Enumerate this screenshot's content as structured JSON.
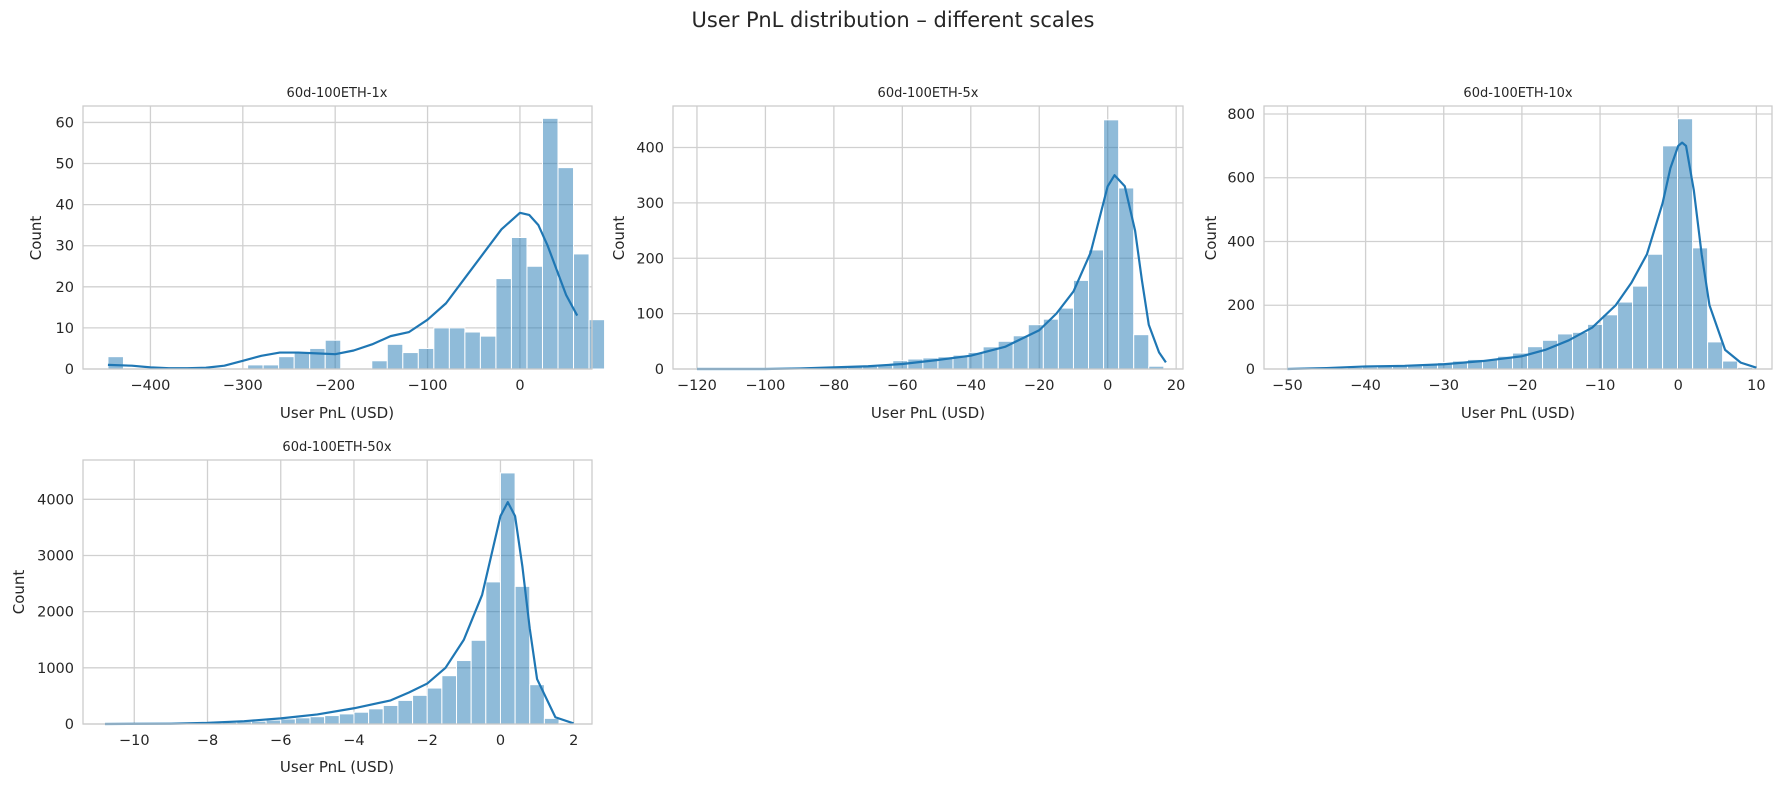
{
  "figure": {
    "title": "User PnL distribution – different scales"
  },
  "chart_data": [
    {
      "type": "bar",
      "subtype": "histogram-with-kde",
      "title": "60d-100ETH-1x",
      "xlabel": "User PnL (USD)",
      "ylabel": "Count",
      "xlim": [
        -473,
        78
      ],
      "ylim": [
        0,
        64
      ],
      "xticks": [
        -400,
        -300,
        -200,
        -100,
        0
      ],
      "yticks": [
        0,
        10,
        20,
        30,
        40,
        50,
        60
      ],
      "grid": true,
      "bin_start": -446,
      "bin_width": 16.8,
      "counts": [
        3,
        0,
        0,
        0,
        0,
        0,
        0,
        0,
        0,
        1,
        1,
        3,
        4,
        5,
        7,
        0,
        0,
        2,
        6,
        4,
        5,
        10,
        10,
        9,
        8,
        22,
        32,
        25,
        61,
        49,
        28,
        12
      ],
      "kde": {
        "x": [
          -446,
          -420,
          -400,
          -380,
          -360,
          -340,
          -320,
          -300,
          -280,
          -260,
          -240,
          -220,
          -200,
          -180,
          -160,
          -140,
          -120,
          -100,
          -80,
          -60,
          -40,
          -20,
          0,
          10,
          20,
          30,
          40,
          50,
          62
        ],
        "y": [
          1,
          0.8,
          0.4,
          0.2,
          0.2,
          0.3,
          0.8,
          2,
          3.2,
          4,
          4,
          3.8,
          3.6,
          4.5,
          6,
          8,
          9,
          12,
          16,
          22,
          28,
          34,
          38,
          37.5,
          35,
          30,
          24,
          18,
          13
        ]
      }
    },
    {
      "type": "bar",
      "subtype": "histogram-with-kde",
      "title": "60d-100ETH-5x",
      "xlabel": "User PnL (USD)",
      "ylabel": "Count",
      "xlim": [
        -127,
        22
      ],
      "ylim": [
        0,
        475
      ],
      "xticks": [
        -120,
        -100,
        -80,
        -60,
        -40,
        -20,
        0,
        20
      ],
      "yticks": [
        0,
        100,
        200,
        300,
        400
      ],
      "grid": true,
      "bin_start": -120,
      "bin_width": 4.4,
      "counts": [
        1,
        1,
        1,
        1,
        1,
        1,
        2,
        2,
        3,
        3,
        4,
        5,
        8,
        15,
        18,
        20,
        22,
        25,
        30,
        40,
        50,
        60,
        80,
        90,
        110,
        160,
        215,
        450,
        327,
        62,
        5
      ],
      "kde": {
        "x": [
          -120,
          -110,
          -100,
          -90,
          -80,
          -70,
          -60,
          -50,
          -40,
          -30,
          -20,
          -15,
          -10,
          -5,
          0,
          2,
          5,
          8,
          10,
          12,
          15,
          17
        ],
        "y": [
          0,
          0,
          0,
          1,
          3,
          5,
          9,
          16,
          24,
          40,
          70,
          100,
          140,
          210,
          330,
          350,
          330,
          250,
          160,
          80,
          30,
          12
        ]
      }
    },
    {
      "type": "bar",
      "subtype": "histogram-with-kde",
      "title": "60d-100ETH-10x",
      "xlabel": "User PnL (USD)",
      "ylabel": "Count",
      "xlim": [
        -53,
        12
      ],
      "ylim": [
        0,
        825
      ],
      "xticks": [
        -50,
        -40,
        -30,
        -20,
        -10,
        0,
        10
      ],
      "yticks": [
        0,
        200,
        400,
        600,
        800
      ],
      "grid": true,
      "bin_start": -50,
      "bin_width": 1.92,
      "counts": [
        2,
        2,
        3,
        3,
        5,
        6,
        8,
        10,
        12,
        15,
        20,
        25,
        30,
        30,
        40,
        50,
        70,
        90,
        110,
        115,
        140,
        170,
        210,
        260,
        360,
        700,
        785,
        380,
        85,
        25,
        5
      ],
      "kde": {
        "x": [
          -50,
          -45,
          -40,
          -35,
          -30,
          -25,
          -20,
          -17,
          -14,
          -11,
          -8,
          -6,
          -4,
          -2,
          -1,
          0,
          0.5,
          1,
          2,
          3,
          4,
          6,
          8,
          10
        ],
        "y": [
          0,
          3,
          8,
          10,
          15,
          25,
          40,
          60,
          90,
          130,
          200,
          270,
          360,
          520,
          630,
          700,
          710,
          700,
          560,
          360,
          200,
          60,
          20,
          4
        ]
      }
    },
    {
      "type": "bar",
      "subtype": "histogram-with-kde",
      "title": "60d-100ETH-50x",
      "xlabel": "User PnL (USD)",
      "ylabel": "Count",
      "xlim": [
        -11.4,
        2.5
      ],
      "ylim": [
        0,
        4700
      ],
      "xticks": [
        -10,
        -8,
        -6,
        -4,
        -2,
        0,
        2
      ],
      "yticks": [
        0,
        1000,
        2000,
        3000,
        4000
      ],
      "grid": true,
      "bin_start": -10.8,
      "bin_width": 0.4,
      "counts": [
        5,
        5,
        5,
        10,
        10,
        15,
        20,
        25,
        30,
        40,
        50,
        70,
        90,
        110,
        130,
        150,
        180,
        210,
        270,
        330,
        420,
        510,
        640,
        860,
        1130,
        1490,
        2530,
        4470,
        2450,
        700,
        100,
        20
      ],
      "kde": {
        "x": [
          -10.8,
          -9,
          -8,
          -7,
          -6,
          -5,
          -4,
          -3,
          -2.5,
          -2,
          -1.5,
          -1,
          -0.5,
          0,
          0.2,
          0.4,
          0.6,
          0.8,
          1,
          1.5,
          2
        ],
        "y": [
          0,
          5,
          20,
          50,
          100,
          170,
          280,
          420,
          560,
          720,
          1000,
          1500,
          2300,
          3700,
          3950,
          3700,
          2800,
          1700,
          800,
          120,
          10
        ]
      }
    }
  ]
}
